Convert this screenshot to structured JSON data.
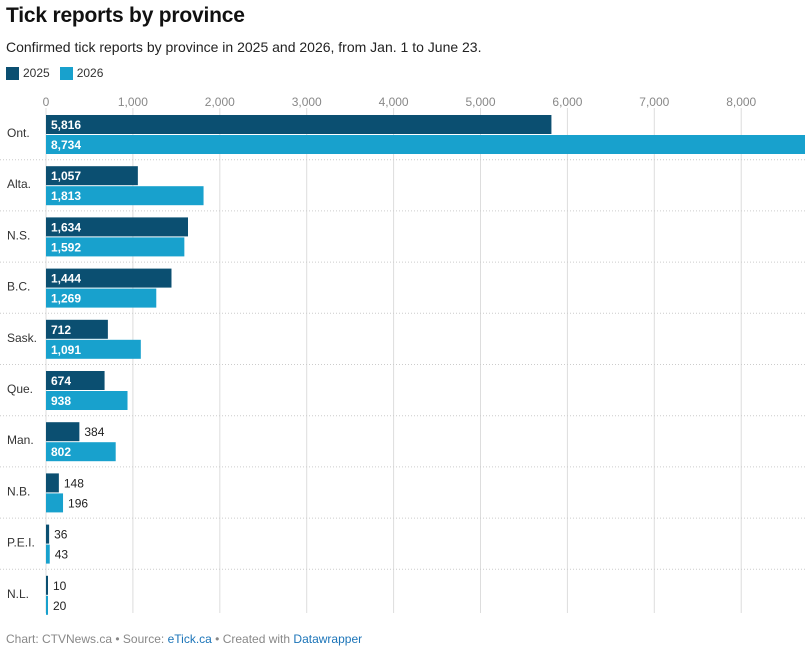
{
  "title": "Tick reports by province",
  "subtitle": "Confirmed tick reports by province in 2025 and 2026, from Jan. 1 to June 23.",
  "colors": {
    "series_2025": "#0b4f71",
    "series_2026": "#18a1cd",
    "grid": "#dddddd",
    "separator": "#cccccc"
  },
  "chart_data": {
    "type": "bar",
    "orientation": "horizontal",
    "categories": [
      "Ont.",
      "Alta.",
      "N.S.",
      "B.C.",
      "Sask.",
      "Que.",
      "Man.",
      "N.B.",
      "P.E.I.",
      "N.L."
    ],
    "series": [
      {
        "name": "2025",
        "values": [
          5816,
          1057,
          1634,
          1444,
          712,
          674,
          384,
          148,
          36,
          10
        ]
      },
      {
        "name": "2026",
        "values": [
          8734,
          1813,
          1592,
          1269,
          1091,
          938,
          802,
          196,
          43,
          20
        ]
      }
    ],
    "value_labels": [
      [
        "5,816",
        "1,057",
        "1,634",
        "1,444",
        "712",
        "674",
        "384",
        "148",
        "36",
        "10"
      ],
      [
        "8,734",
        "1,813",
        "1,592",
        "1,269",
        "1,091",
        "938",
        "802",
        "196",
        "43",
        "20"
      ]
    ],
    "xticks": [
      0,
      1000,
      2000,
      3000,
      4000,
      5000,
      6000,
      7000,
      8000
    ],
    "xtick_labels": [
      "0",
      "1,000",
      "2,000",
      "3,000",
      "4,000",
      "5,000",
      "6,000",
      "7,000",
      "8,000"
    ],
    "xlim": [
      0,
      8734
    ],
    "axis_position": "top",
    "grid": true,
    "legend_position": "top-left"
  },
  "footer": {
    "prefix": "Chart: CTVNews.ca • Source: ",
    "source": "eTick.ca",
    "middle": " • Created with ",
    "tool": "Datawrapper"
  }
}
